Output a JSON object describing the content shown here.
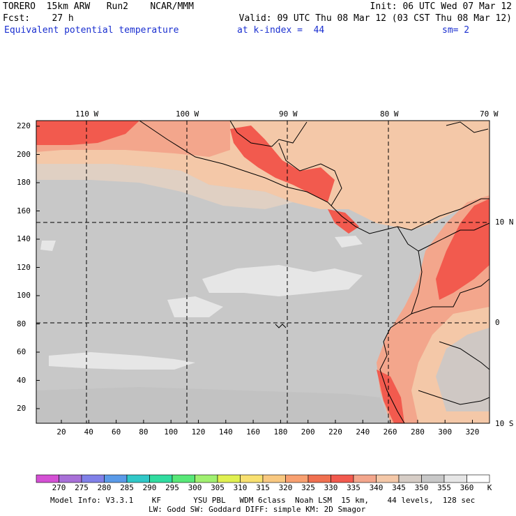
{
  "header": {
    "line1_left": "TORERO  15km ARW   Run2    NCAR/MMM",
    "line1_right": "Init: 06 UTC Wed 07 Mar 12",
    "line2_left": "Fcst:    27 h",
    "line2_right": "Valid: 09 UTC Thu 08 Mar 12 (03 CST Thu 08 Mar 12)",
    "line3_left": "Equivalent potential temperature",
    "line3_mid": "at k-index =  44",
    "line3_right": "sm= 2"
  },
  "map": {
    "top_longitudes": [
      "110 W",
      "100 W",
      "90 W",
      "80 W",
      "70 W"
    ],
    "right_latitudes": [
      "10 N",
      "0",
      "10 S"
    ],
    "y_ticks": [
      "220",
      "200",
      "180",
      "160",
      "140",
      "120",
      "100",
      "80",
      "60",
      "40",
      "20"
    ],
    "x_ticks": [
      "20",
      "40",
      "60",
      "80",
      "100",
      "120",
      "140",
      "160",
      "180",
      "200",
      "220",
      "240",
      "260",
      "280",
      "300",
      "320"
    ],
    "colors": {
      "light_gray_345": "#e6e6e6",
      "gray_350": "#c8c8c8",
      "tan_340": "#f4c8a8",
      "salmon_335": "#f3a68c",
      "red_330": "#f25a4e",
      "border": "#000000"
    }
  },
  "colorbar": {
    "values": [
      "270",
      "275",
      "280",
      "285",
      "290",
      "295",
      "300",
      "305",
      "310",
      "315",
      "320",
      "325",
      "330",
      "335",
      "340",
      "345",
      "350",
      "355",
      "360"
    ],
    "unit": "K",
    "colors": [
      "#d450d4",
      "#a870d8",
      "#8080e8",
      "#5a9ae8",
      "#30c8c8",
      "#30dca0",
      "#58e878",
      "#a0f070",
      "#e0f050",
      "#f8e070",
      "#f8c880",
      "#f8a070",
      "#f07050",
      "#f25a4e",
      "#f3a68c",
      "#f4c8a8",
      "#d6cdc6",
      "#c8c8c8",
      "#e6e6e6",
      "#ffffff"
    ]
  },
  "footer": {
    "line1": "Model Info: V3.3.1    KF       YSU PBL   WDM 6class  Noah LSM  15 km,    44 levels,  128 sec",
    "line2": "LW: Godd SW: Goddard DIFF: simple KM: 2D Smagor"
  }
}
